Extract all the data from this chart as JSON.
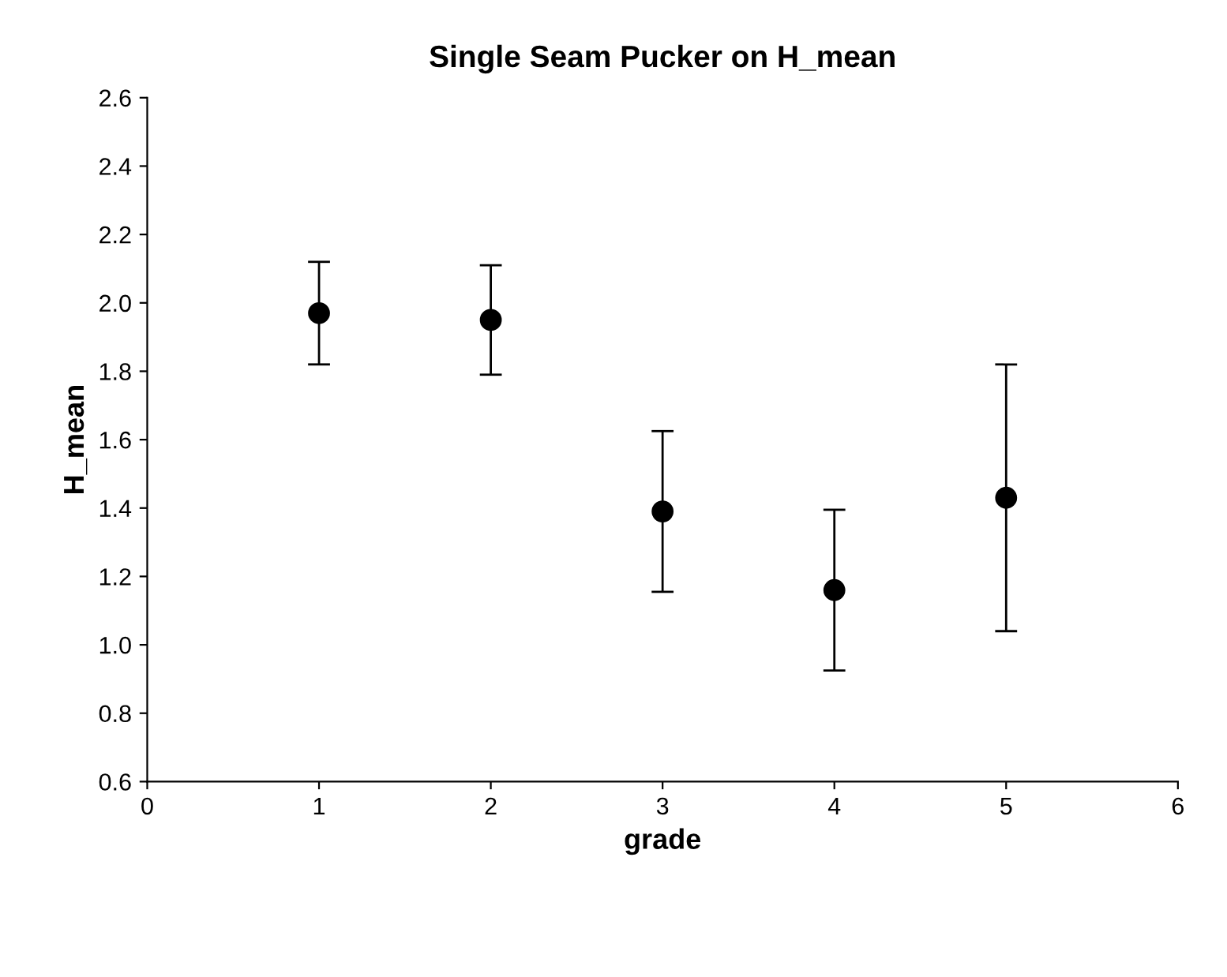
{
  "chart_data": {
    "type": "scatter",
    "title": "Single Seam Pucker on H_mean",
    "xlabel": "grade",
    "ylabel": "H_mean",
    "x": [
      1,
      2,
      3,
      4,
      5
    ],
    "values": [
      1.97,
      1.95,
      1.39,
      1.16,
      1.43
    ],
    "errors": [
      0.15,
      0.16,
      0.235,
      0.235,
      0.39
    ],
    "color": "#000000",
    "xlim": [
      0,
      6
    ],
    "xticks": [
      0,
      1,
      2,
      3,
      4,
      5,
      6
    ],
    "ylim": [
      0.6,
      2.6
    ],
    "yticks": [
      {
        "value": 0.6,
        "label": "0.6"
      },
      {
        "value": 0.8,
        "label": "0.8"
      },
      {
        "value": 1.0,
        "label": "1.0"
      },
      {
        "value": 1.2,
        "label": "1.2"
      },
      {
        "value": 1.4,
        "label": "1.4"
      },
      {
        "value": 1.6,
        "label": "1.6"
      },
      {
        "value": 1.8,
        "label": "1.8"
      },
      {
        "value": 2.0,
        "label": "2.0"
      },
      {
        "value": 2.2,
        "label": "2.2"
      },
      {
        "value": 2.4,
        "label": "2.4"
      },
      {
        "value": 2.6,
        "label": "2.6"
      }
    ],
    "marker": "circle",
    "grid": false,
    "legend": false
  }
}
